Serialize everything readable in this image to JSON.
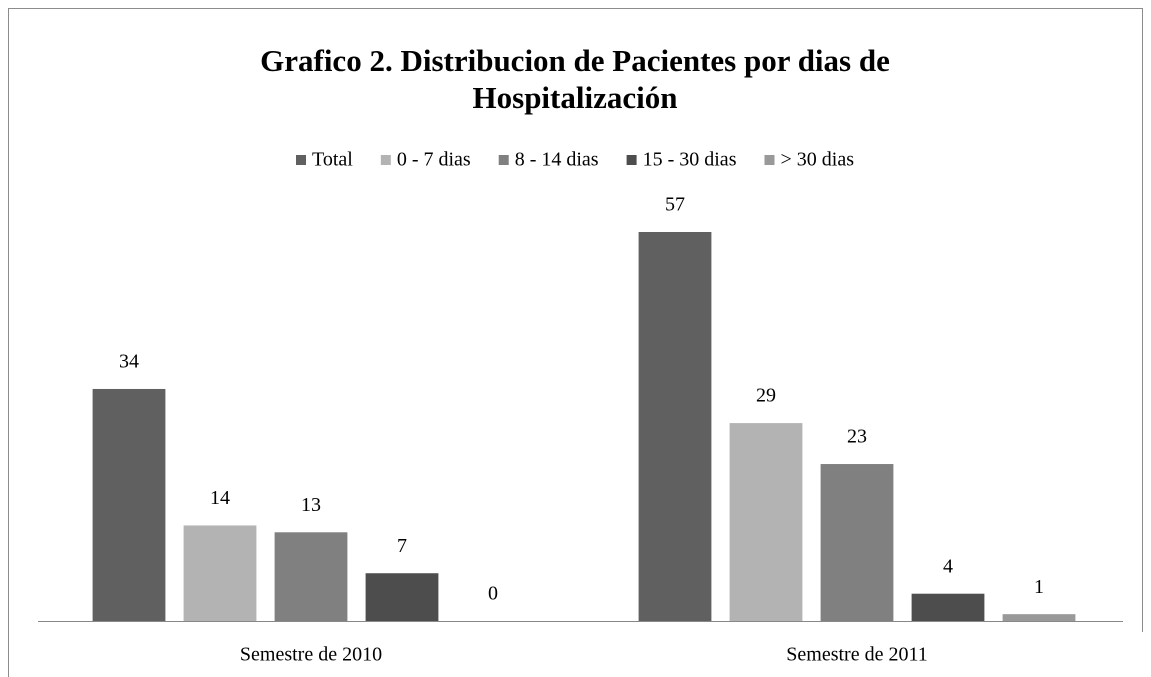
{
  "chart_data": {
    "type": "bar",
    "title": [
      "Grafico 2. Distribucion de Pacientes por dias de",
      "Hospitalización"
    ],
    "categories": [
      "Semestre de 2010",
      "Semestre de 2011"
    ],
    "series": [
      {
        "name": "Total",
        "color": "#606060",
        "values": [
          34,
          57
        ]
      },
      {
        "name": "0 - 7 dias",
        "color": "#b3b3b3",
        "values": [
          14,
          29
        ]
      },
      {
        "name": "8 - 14 dias",
        "color": "#808080",
        "values": [
          13,
          23
        ]
      },
      {
        "name": "15 - 30 dias",
        "color": "#4d4d4d",
        "values": [
          7,
          4
        ]
      },
      {
        "name": "> 30 dias",
        "color": "#999999",
        "values": [
          0,
          1
        ]
      }
    ],
    "legend": "top"
  }
}
